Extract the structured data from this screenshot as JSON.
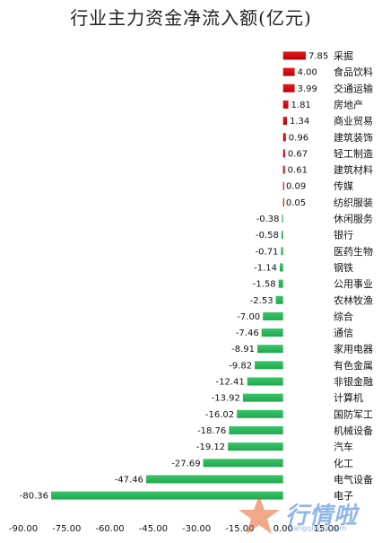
{
  "chart_data": {
    "type": "bar",
    "orientation": "horizontal",
    "title": "行业主力资金净流入额(亿元)",
    "categories": [
      "采掘",
      "食品饮料",
      "交通运输",
      "房地产",
      "商业贸易",
      "建筑装饰",
      "轻工制造",
      "建筑材料",
      "传媒",
      "纺织服装",
      "休闲服务",
      "银行",
      "医药生物",
      "钢铁",
      "公用事业",
      "农林牧渔",
      "综合",
      "通信",
      "家用电器",
      "有色金属",
      "非银金融",
      "计算机",
      "国防军工",
      "机械设备",
      "汽车",
      "化工",
      "电气设备",
      "电子"
    ],
    "values": [
      7.85,
      4.0,
      3.99,
      1.81,
      1.34,
      0.96,
      0.67,
      0.61,
      0.09,
      0.05,
      -0.38,
      -0.58,
      -0.71,
      -1.14,
      -1.58,
      -2.53,
      -7.0,
      -7.46,
      -8.91,
      -9.82,
      -12.41,
      -13.92,
      -16.02,
      -18.76,
      -19.12,
      -27.69,
      -47.46,
      -80.36
    ],
    "value_labels": [
      "7.85",
      "4.00",
      "3.99",
      "1.81",
      "1.34",
      "0.96",
      "0.67",
      "0.61",
      "0.09",
      "0.05",
      "-0.38",
      "-0.58",
      "-0.71",
      "-1.14",
      "-1.58",
      "-2.53",
      "-7.00",
      "-7.46",
      "-8.91",
      "-9.82",
      "-12.41",
      "-13.92",
      "-16.02",
      "-18.76",
      "-19.12",
      "-27.69",
      "-47.46",
      "-80.36"
    ],
    "xlim": [
      -90,
      15
    ],
    "xticks": [
      "-90.00",
      "-75.00",
      "-60.00",
      "-45.00",
      "-30.00",
      "-15.00",
      "0.00",
      "15.00"
    ],
    "xtick_values": [
      -90,
      -75,
      -60,
      -45,
      -30,
      -15,
      0,
      15
    ],
    "xlabel": "",
    "ylabel": "",
    "grid": false,
    "legend": "none",
    "colors": {
      "positive": "#c00000",
      "negative": "#1fa84f"
    }
  },
  "watermark": {
    "brand": "行情啦",
    "url": "hangqingla.com"
  }
}
